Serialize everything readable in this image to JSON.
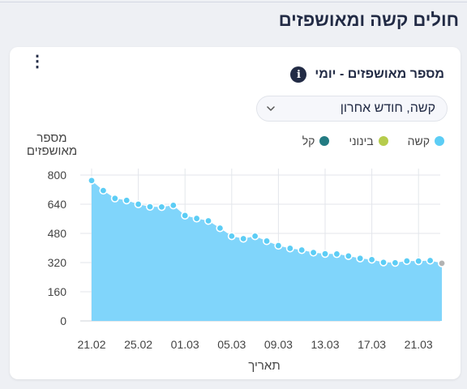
{
  "page": {
    "section_title": "חולים קשה ומאושפזים"
  },
  "card": {
    "title": "מספר מאושפזים - יומי",
    "menu_icon": "kebab-menu-icon",
    "info_icon": "info-icon",
    "dropdown": {
      "value": "קשה, חודש אחרון",
      "icon": "chevron-down-icon"
    }
  },
  "colors": {
    "severe": "#5ccdf5",
    "moderate": "#b6cc4c",
    "mild": "#237b82",
    "area_fill": "#80d5fb",
    "point_stroke": "#ffffff",
    "last_point": "#b3b3b3"
  },
  "chart_data": {
    "type": "area",
    "ylabel": "מספר מאושפזים",
    "xlabel": "תאריך",
    "ylim": [
      0,
      800
    ],
    "y_ticks": [
      "0",
      "160",
      "320",
      "480",
      "640",
      "800"
    ],
    "grid": true,
    "legend_position": "top-right",
    "x_ticks": [
      "21.02",
      "25.02",
      "01.03",
      "05.03",
      "09.03",
      "13.03",
      "17.03",
      "21.03"
    ],
    "legend": [
      {
        "name": "קשה",
        "color": "#5ccdf5"
      },
      {
        "name": "בינוני",
        "color": "#b6cc4c"
      },
      {
        "name": "קל",
        "color": "#237b82"
      }
    ],
    "series": [
      {
        "name": "קשה",
        "x": [
          "21.02",
          "22.02",
          "23.02",
          "24.02",
          "25.02",
          "26.02",
          "27.02",
          "28.02",
          "01.03",
          "02.03",
          "03.03",
          "04.03",
          "05.03",
          "06.03",
          "07.03",
          "08.03",
          "09.03",
          "10.03",
          "11.03",
          "12.03",
          "13.03",
          "14.03",
          "15.03",
          "16.03",
          "17.03",
          "18.03",
          "19.03",
          "20.03",
          "21.03",
          "22.03"
        ],
        "values": [
          770,
          715,
          672,
          661,
          640,
          626,
          625,
          634,
          578,
          562,
          549,
          509,
          465,
          451,
          465,
          438,
          413,
          398,
          389,
          375,
          368,
          367,
          356,
          343,
          336,
          321,
          319,
          329,
          328,
          331
        ]
      }
    ],
    "last_point": {
      "x": "23.03",
      "value": 316
    }
  }
}
